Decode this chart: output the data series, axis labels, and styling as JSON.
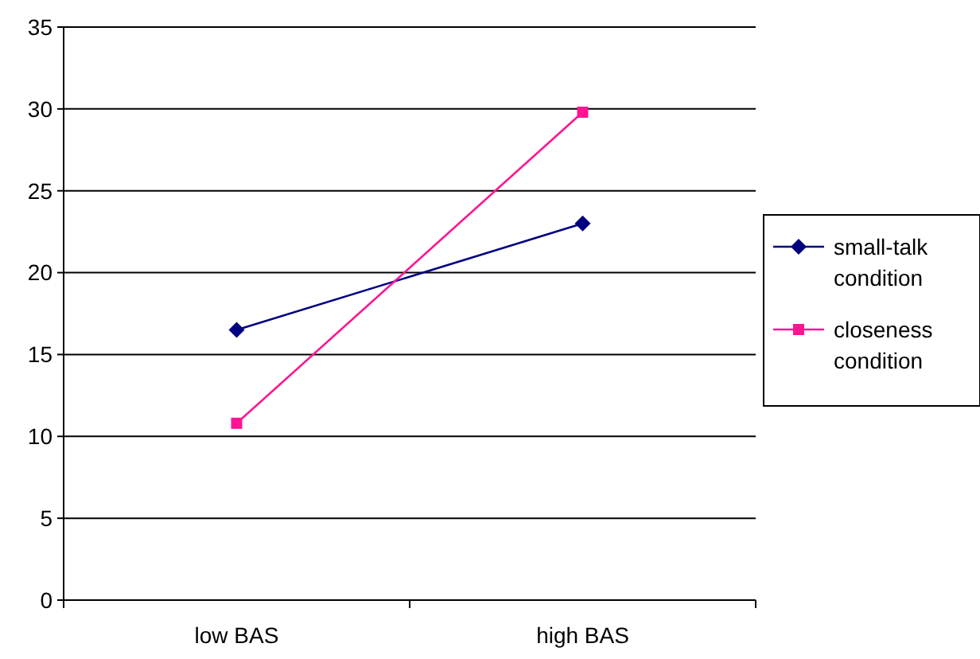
{
  "chart_data": {
    "type": "line",
    "categories": [
      "low BAS",
      "high BAS"
    ],
    "ylim": [
      0,
      35
    ],
    "yticks": [
      0,
      5,
      10,
      15,
      20,
      25,
      30,
      35
    ],
    "grid": "y",
    "legend": "right",
    "series": [
      {
        "name": "small-talk condition",
        "color": "#000080",
        "marker": "diamond",
        "values": [
          16.5,
          23
        ]
      },
      {
        "name": "closeness condition",
        "color": "#ff1493",
        "marker": "square",
        "values": [
          10.8,
          29.8
        ]
      }
    ]
  }
}
